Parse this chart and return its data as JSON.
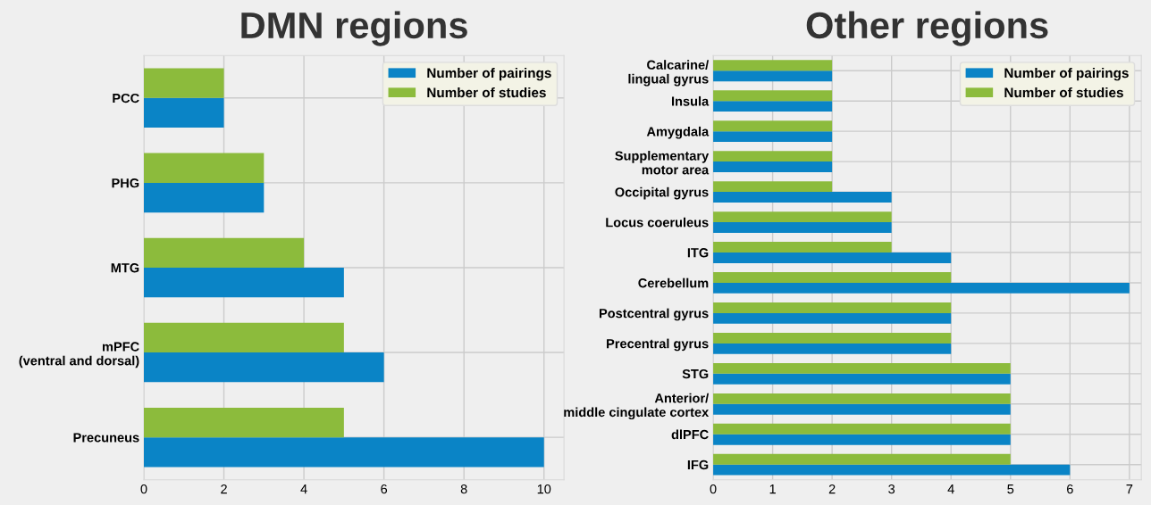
{
  "chart_data": [
    {
      "type": "bar",
      "orientation": "horizontal",
      "title": "DMN regions",
      "categories": [
        "PCC",
        "PHG",
        "MTG",
        "mPFC\n(ventral and dorsal)",
        "Precuneus"
      ],
      "series": [
        {
          "name": "Number of pairings",
          "color": "#0a84c6",
          "values": [
            2,
            3,
            5,
            6,
            10
          ]
        },
        {
          "name": "Number of studies",
          "color": "#8cbb3c",
          "values": [
            2,
            3,
            4,
            5,
            5
          ]
        }
      ],
      "xlim": [
        0,
        10.5
      ],
      "xticks": [
        0,
        2,
        4,
        6,
        8,
        10
      ],
      "grid": true,
      "legend": "top right"
    },
    {
      "type": "bar",
      "orientation": "horizontal",
      "title": "Other regions",
      "categories": [
        "Calcarine/\nlingual gyrus",
        "Insula",
        "Amygdala",
        "Supplementary\nmotor area",
        "Occipital gyrus",
        "Locus coeruleus",
        "ITG",
        "Cerebellum",
        "Postcentral gyrus",
        "Precentral gyrus",
        "STG",
        "Anterior/\nmiddle cingulate cortex",
        "dlPFC",
        "IFG"
      ],
      "series": [
        {
          "name": "Number of pairings",
          "color": "#0a84c6",
          "values": [
            2,
            2,
            2,
            2,
            3,
            3,
            4,
            7,
            4,
            4,
            5,
            5,
            5,
            6
          ]
        },
        {
          "name": "Number of studies",
          "color": "#8cbb3c",
          "values": [
            2,
            2,
            2,
            2,
            2,
            3,
            3,
            4,
            4,
            4,
            5,
            5,
            5,
            5
          ]
        }
      ],
      "xlim": [
        0,
        7.2
      ],
      "xticks": [
        0,
        1,
        2,
        3,
        4,
        5,
        6,
        7
      ],
      "grid": true,
      "legend": "top right"
    }
  ]
}
